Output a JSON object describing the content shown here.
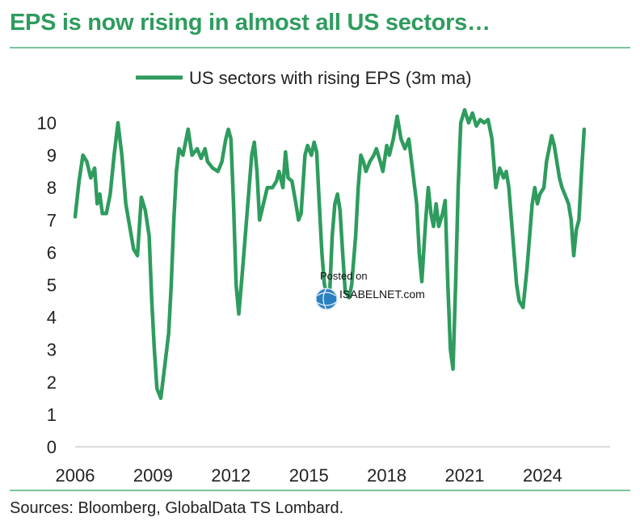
{
  "header": {
    "title": "EPS is now rising in almost all US sectors…"
  },
  "footer": {
    "source": "Sources: Bloomberg, GlobalData TS Lombard."
  },
  "watermark": {
    "line1": "Posted on",
    "line2": "ISABELNET.com",
    "icon": "globe-icon"
  },
  "colors": {
    "accent": "#2e9c5e",
    "line": "#2e9c5e",
    "rule": "#7cc49a"
  },
  "chart_data": {
    "type": "line",
    "title": "EPS is now rising in almost all US sectors…",
    "xlabel": "",
    "ylabel": "",
    "xlim": [
      2006,
      2026.6
    ],
    "ylim": [
      0,
      10
    ],
    "x_ticks": [
      "2006",
      "2009",
      "2012",
      "2015",
      "2018",
      "2021",
      "2024"
    ],
    "y_ticks": [
      "0",
      "1",
      "2",
      "3",
      "4",
      "5",
      "6",
      "7",
      "8",
      "9",
      "10"
    ],
    "grid": false,
    "legend_position": "top-center",
    "series": [
      {
        "name": "US sectors with rising EPS (3m ma)",
        "points": [
          [
            2006.0,
            7.1
          ],
          [
            2006.15,
            8.2
          ],
          [
            2006.3,
            9.0
          ],
          [
            2006.45,
            8.8
          ],
          [
            2006.6,
            8.3
          ],
          [
            2006.75,
            8.6
          ],
          [
            2006.85,
            7.5
          ],
          [
            2006.95,
            7.8
          ],
          [
            2007.05,
            7.2
          ],
          [
            2007.2,
            7.2
          ],
          [
            2007.35,
            7.8
          ],
          [
            2007.5,
            9.0
          ],
          [
            2007.65,
            10.0
          ],
          [
            2007.8,
            9.0
          ],
          [
            2007.95,
            7.5
          ],
          [
            2008.1,
            6.8
          ],
          [
            2008.25,
            6.1
          ],
          [
            2008.4,
            5.9
          ],
          [
            2008.55,
            7.7
          ],
          [
            2008.7,
            7.3
          ],
          [
            2008.85,
            6.5
          ],
          [
            2008.95,
            4.5
          ],
          [
            2009.05,
            3.0
          ],
          [
            2009.15,
            1.8
          ],
          [
            2009.3,
            1.5
          ],
          [
            2009.45,
            2.5
          ],
          [
            2009.6,
            3.5
          ],
          [
            2009.7,
            5.0
          ],
          [
            2009.8,
            7.0
          ],
          [
            2009.9,
            8.5
          ],
          [
            2010.0,
            9.2
          ],
          [
            2010.15,
            9.0
          ],
          [
            2010.25,
            9.4
          ],
          [
            2010.35,
            9.8
          ],
          [
            2010.5,
            9.0
          ],
          [
            2010.7,
            9.2
          ],
          [
            2010.85,
            8.9
          ],
          [
            2011.0,
            9.2
          ],
          [
            2011.1,
            8.8
          ],
          [
            2011.3,
            8.6
          ],
          [
            2011.5,
            8.5
          ],
          [
            2011.65,
            8.8
          ],
          [
            2011.8,
            9.5
          ],
          [
            2011.9,
            9.8
          ],
          [
            2012.0,
            9.5
          ],
          [
            2012.1,
            7.5
          ],
          [
            2012.2,
            5.0
          ],
          [
            2012.3,
            4.1
          ],
          [
            2012.45,
            5.5
          ],
          [
            2012.6,
            7.0
          ],
          [
            2012.7,
            8.0
          ],
          [
            2012.8,
            9.0
          ],
          [
            2012.9,
            9.4
          ],
          [
            2013.0,
            8.5
          ],
          [
            2013.1,
            7.0
          ],
          [
            2013.25,
            7.5
          ],
          [
            2013.4,
            8.0
          ],
          [
            2013.6,
            8.0
          ],
          [
            2013.75,
            8.2
          ],
          [
            2013.85,
            8.5
          ],
          [
            2014.0,
            8.0
          ],
          [
            2014.1,
            9.1
          ],
          [
            2014.2,
            8.3
          ],
          [
            2014.35,
            8.2
          ],
          [
            2014.5,
            7.5
          ],
          [
            2014.6,
            7.0
          ],
          [
            2014.7,
            7.2
          ],
          [
            2014.85,
            9.0
          ],
          [
            2014.95,
            9.3
          ],
          [
            2015.1,
            9.0
          ],
          [
            2015.2,
            9.4
          ],
          [
            2015.3,
            9.1
          ],
          [
            2015.4,
            7.5
          ],
          [
            2015.5,
            6.0
          ],
          [
            2015.6,
            5.0
          ],
          [
            2015.7,
            4.7
          ],
          [
            2015.8,
            4.7
          ],
          [
            2015.9,
            6.5
          ],
          [
            2016.0,
            7.5
          ],
          [
            2016.1,
            7.8
          ],
          [
            2016.2,
            7.3
          ],
          [
            2016.3,
            6.0
          ],
          [
            2016.4,
            4.8
          ],
          [
            2016.55,
            4.6
          ],
          [
            2016.65,
            5.0
          ],
          [
            2016.8,
            6.5
          ],
          [
            2016.9,
            8.0
          ],
          [
            2017.0,
            9.0
          ],
          [
            2017.1,
            8.8
          ],
          [
            2017.2,
            8.5
          ],
          [
            2017.35,
            8.8
          ],
          [
            2017.5,
            9.0
          ],
          [
            2017.6,
            9.2
          ],
          [
            2017.75,
            8.8
          ],
          [
            2017.85,
            8.5
          ],
          [
            2018.0,
            9.3
          ],
          [
            2018.1,
            9.0
          ],
          [
            2018.25,
            9.5
          ],
          [
            2018.4,
            10.2
          ],
          [
            2018.55,
            9.5
          ],
          [
            2018.7,
            9.2
          ],
          [
            2018.85,
            9.5
          ],
          [
            2019.0,
            8.5
          ],
          [
            2019.15,
            7.5
          ],
          [
            2019.25,
            6.0
          ],
          [
            2019.35,
            5.1
          ],
          [
            2019.5,
            7.0
          ],
          [
            2019.6,
            8.0
          ],
          [
            2019.7,
            7.2
          ],
          [
            2019.8,
            6.8
          ],
          [
            2019.9,
            7.5
          ],
          [
            2020.0,
            6.8
          ],
          [
            2020.15,
            7.2
          ],
          [
            2020.25,
            7.6
          ],
          [
            2020.35,
            5.0
          ],
          [
            2020.45,
            3.0
          ],
          [
            2020.55,
            2.4
          ],
          [
            2020.65,
            5.0
          ],
          [
            2020.75,
            8.0
          ],
          [
            2020.85,
            10.0
          ],
          [
            2021.0,
            10.4
          ],
          [
            2021.15,
            10.0
          ],
          [
            2021.3,
            10.3
          ],
          [
            2021.45,
            9.9
          ],
          [
            2021.6,
            10.1
          ],
          [
            2021.75,
            10.0
          ],
          [
            2021.9,
            10.1
          ],
          [
            2022.05,
            9.5
          ],
          [
            2022.2,
            8.0
          ],
          [
            2022.35,
            8.6
          ],
          [
            2022.5,
            8.3
          ],
          [
            2022.6,
            8.5
          ],
          [
            2022.7,
            8.0
          ],
          [
            2022.8,
            7.0
          ],
          [
            2022.9,
            6.0
          ],
          [
            2023.0,
            5.0
          ],
          [
            2023.1,
            4.5
          ],
          [
            2023.25,
            4.3
          ],
          [
            2023.4,
            5.5
          ],
          [
            2023.5,
            6.5
          ],
          [
            2023.6,
            7.5
          ],
          [
            2023.7,
            8.0
          ],
          [
            2023.8,
            7.5
          ],
          [
            2023.9,
            7.8
          ],
          [
            2024.05,
            8.0
          ],
          [
            2024.15,
            8.8
          ],
          [
            2024.25,
            9.2
          ],
          [
            2024.35,
            9.6
          ],
          [
            2024.45,
            9.3
          ],
          [
            2024.55,
            8.8
          ],
          [
            2024.65,
            8.3
          ],
          [
            2024.75,
            8.0
          ],
          [
            2024.85,
            7.8
          ],
          [
            2025.0,
            7.5
          ],
          [
            2025.1,
            7.0
          ],
          [
            2025.2,
            5.9
          ],
          [
            2025.3,
            6.7
          ],
          [
            2025.4,
            7.0
          ],
          [
            2025.5,
            8.5
          ],
          [
            2025.6,
            9.8
          ]
        ]
      }
    ]
  }
}
